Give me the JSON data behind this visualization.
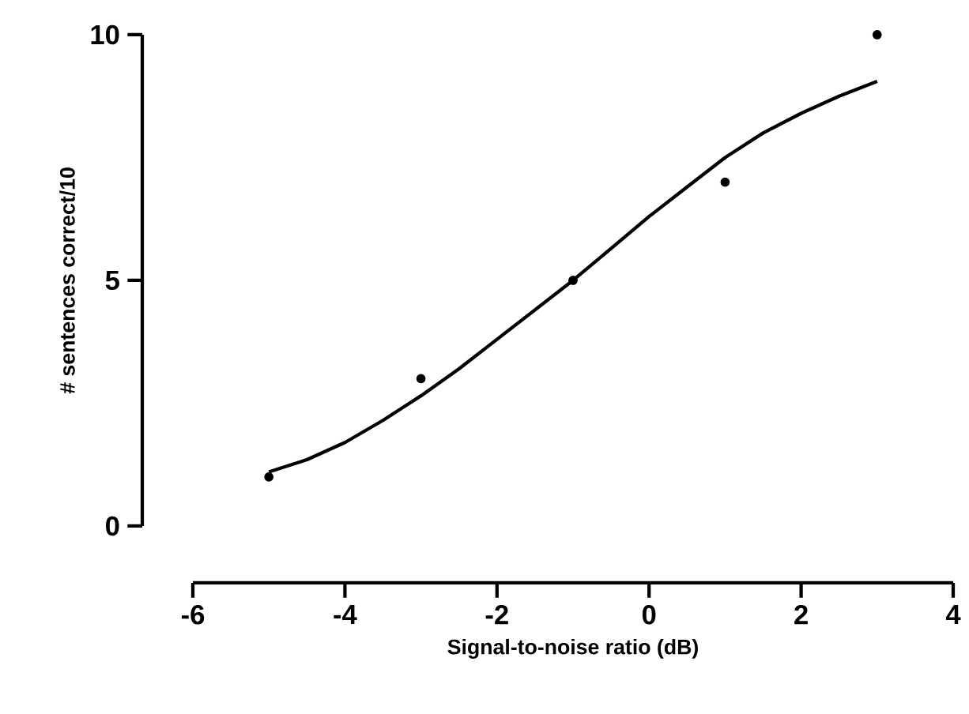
{
  "chart_data": {
    "type": "scatter",
    "xlabel": "Signal-to-noise ratio (dB)",
    "ylabel": "# sentences correct/10",
    "xlim": [
      -6,
      4
    ],
    "ylim": [
      0,
      10
    ],
    "xticks": [
      -6,
      -4,
      -2,
      0,
      2,
      4
    ],
    "yticks": [
      0,
      5,
      10
    ],
    "grid": false,
    "series": [
      {
        "color": "#000000",
        "marker": "circle",
        "x": [
          -5,
          -3,
          -1,
          1,
          3
        ],
        "values": [
          1,
          3,
          5,
          7,
          10
        ]
      },
      {
        "type": "line",
        "color": "#000000",
        "marker": "none",
        "x": [
          -5,
          -4.5,
          -4,
          -3.5,
          -3,
          -2.5,
          -2,
          -1.5,
          -1,
          -0.5,
          0,
          0.5,
          1,
          1.5,
          2,
          2.5,
          3
        ],
        "values": [
          1.1,
          1.35,
          1.7,
          2.15,
          2.65,
          3.2,
          3.8,
          4.4,
          5.0,
          5.65,
          6.3,
          6.9,
          7.5,
          8.0,
          8.4,
          8.75,
          9.05
        ]
      }
    ]
  }
}
